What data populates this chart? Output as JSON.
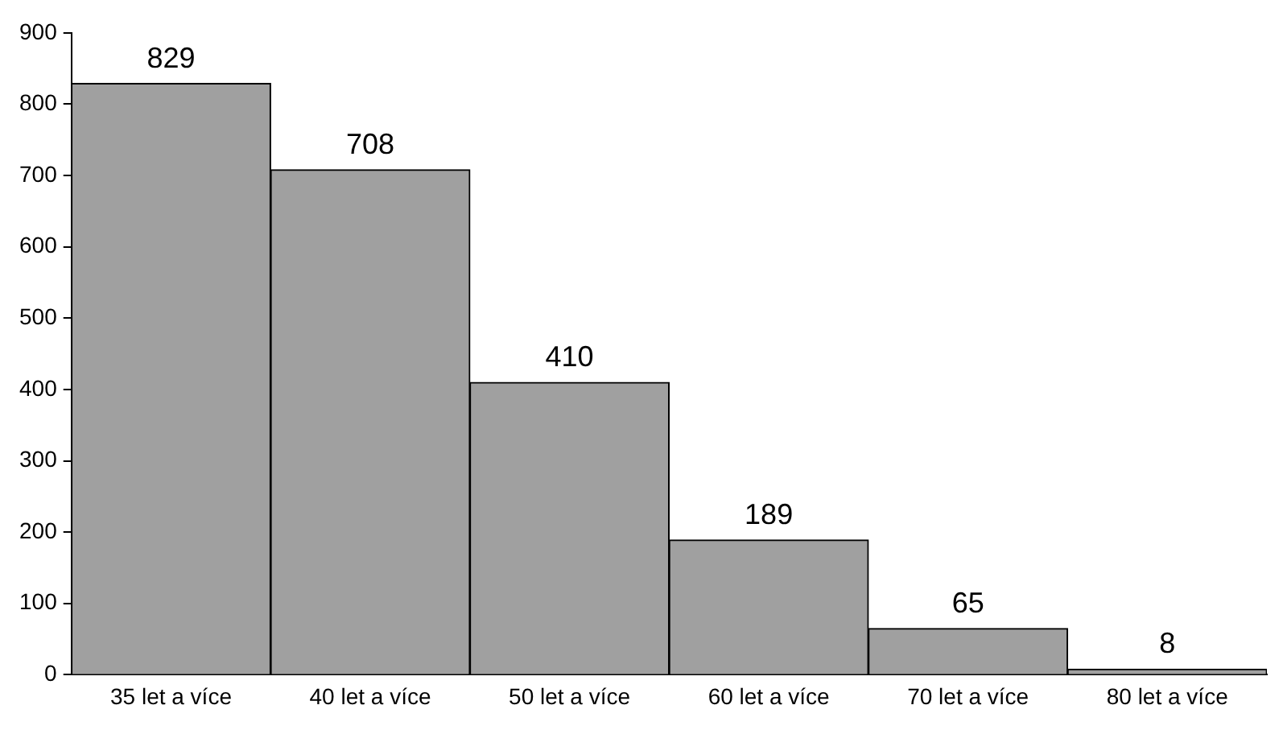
{
  "chart_data": {
    "type": "bar",
    "categories": [
      "35 let a více",
      "40 let a více",
      "50 let a více",
      "60 let a více",
      "70 let a více",
      "80 let a více"
    ],
    "values": [
      829,
      708,
      410,
      189,
      65,
      8
    ],
    "color": "#a0a0a0",
    "ylim": [
      0,
      900
    ],
    "yticks": [
      0,
      100,
      200,
      300,
      400,
      500,
      600,
      700,
      800,
      900
    ],
    "grid": false,
    "legend": false,
    "data_labels": true
  }
}
